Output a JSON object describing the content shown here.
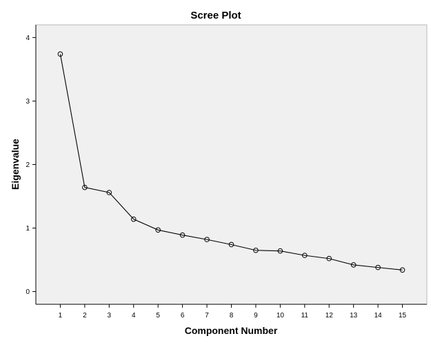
{
  "chart_data": {
    "type": "line",
    "title": "Scree Plot",
    "xlabel": "Component Number",
    "ylabel": "Eigenvalue",
    "x": [
      1,
      2,
      3,
      4,
      5,
      6,
      7,
      8,
      9,
      10,
      11,
      12,
      13,
      14,
      15
    ],
    "series": [
      {
        "values": [
          3.74,
          1.64,
          1.56,
          1.14,
          0.97,
          0.89,
          0.82,
          0.74,
          0.65,
          0.64,
          0.57,
          0.52,
          0.42,
          0.38,
          0.34
        ]
      }
    ],
    "xticks": [
      "1",
      "2",
      "3",
      "4",
      "5",
      "6",
      "7",
      "8",
      "9",
      "10",
      "11",
      "12",
      "13",
      "14",
      "15"
    ],
    "yticks": [
      0,
      1,
      2,
      3,
      4
    ],
    "xlim": [
      0,
      16
    ],
    "ylim": [
      -0.2,
      4.2
    ],
    "grid": false,
    "marker": "open-circle",
    "colors": {
      "line": "#000000",
      "plot_background": "#f0f0f0"
    }
  }
}
